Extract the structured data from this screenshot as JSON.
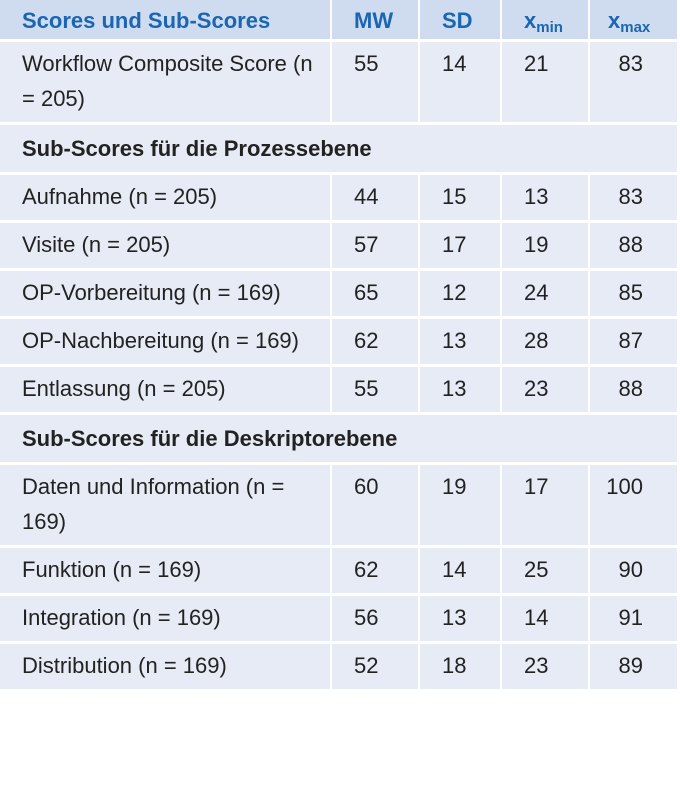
{
  "header": {
    "col1": "Scores und Sub-Scores",
    "col2": "MW",
    "col3": "SD",
    "col4_base": "x",
    "col4_sub": "min",
    "col5_base": "x",
    "col5_sub": "max"
  },
  "rows": [
    {
      "label": "Workflow Composite Score (n = 205)",
      "mw": "55",
      "sd": "14",
      "min": "21",
      "max": "83"
    }
  ],
  "section1": {
    "title": "Sub-Scores für die Prozessebene",
    "rows": [
      {
        "label": "Aufnahme (n = 205)",
        "mw": "44",
        "sd": "15",
        "min": "13",
        "max": "83"
      },
      {
        "label": "Visite (n = 205)",
        "mw": "57",
        "sd": "17",
        "min": "19",
        "max": "88"
      },
      {
        "label": "OP-Vorbereitung (n = 169)",
        "mw": "65",
        "sd": "12",
        "min": "24",
        "max": "85"
      },
      {
        "label": "OP-Nachbereitung (n = 169)",
        "mw": "62",
        "sd": "13",
        "min": "28",
        "max": "87"
      },
      {
        "label": "Entlassung (n = 205)",
        "mw": "55",
        "sd": "13",
        "min": "23",
        "max": "88"
      }
    ]
  },
  "section2": {
    "title": "Sub-Scores für die Deskriptorebene",
    "rows": [
      {
        "label": "Daten und Information (n = 169)",
        "mw": "60",
        "sd": "19",
        "min": "17",
        "max": "100"
      },
      {
        "label": "Funktion (n = 169)",
        "mw": "62",
        "sd": "14",
        "min": "25",
        "max": "90"
      },
      {
        "label": "Integration (n = 169)",
        "mw": "56",
        "sd": "13",
        "min": "14",
        "max": "91"
      },
      {
        "label": "Distribution (n = 169)",
        "mw": "52",
        "sd": "18",
        "min": "23",
        "max": "89"
      }
    ]
  }
}
